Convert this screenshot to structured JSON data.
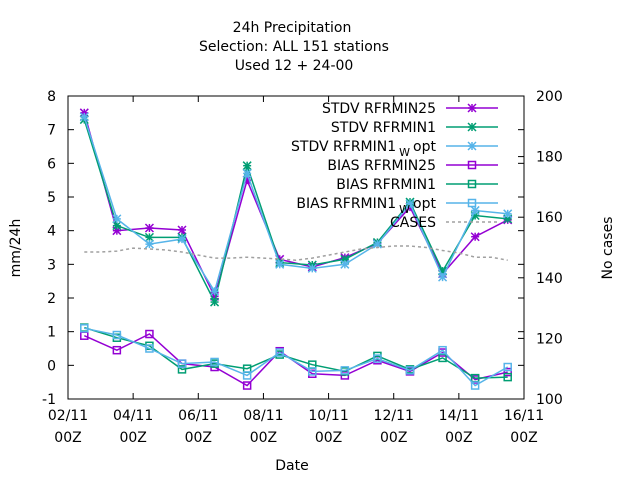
{
  "chart_data": {
    "type": "line",
    "title_lines": [
      "24h Precipitation",
      "Selection: ALL     151 stations",
      "Used  12 + 24-00"
    ],
    "xlabel": "Date",
    "ylabel": "mm/24h",
    "y2label": "No cases",
    "ylim": [
      -1,
      8
    ],
    "y2lim": [
      100,
      200
    ],
    "yticks": [
      "-1",
      "0",
      "1",
      "2",
      "3",
      "4",
      "5",
      "6",
      "7",
      "8"
    ],
    "y2ticks": [
      "100",
      "120",
      "140",
      "160",
      "180",
      "200"
    ],
    "xticks": [
      {
        "top": "02/11",
        "bottom": "00Z"
      },
      {
        "top": "04/11",
        "bottom": "00Z"
      },
      {
        "top": "06/11",
        "bottom": "00Z"
      },
      {
        "top": "08/11",
        "bottom": "00Z"
      },
      {
        "top": "10/11",
        "bottom": "00Z"
      },
      {
        "top": "12/11",
        "bottom": "00Z"
      },
      {
        "top": "14/11",
        "bottom": "00Z"
      },
      {
        "top": "16/11",
        "bottom": "00Z"
      }
    ],
    "x_days": [
      2.5,
      3.5,
      4.5,
      5.5,
      6.5,
      7.5,
      8.5,
      9.5,
      10.5,
      11.5,
      12.5,
      13.5,
      14.5,
      15.5
    ],
    "x_range_days": [
      2,
      16
    ],
    "legend_position": "top-right",
    "series": [
      {
        "name": "STDV RFRMIN25",
        "color": "#9400d3",
        "marker": "star",
        "axis": "y1",
        "values": [
          7.5,
          4.0,
          4.08,
          4.02,
          2.05,
          5.5,
          3.15,
          2.92,
          3.2,
          3.62,
          4.7,
          2.72,
          3.82,
          4.32
        ]
      },
      {
        "name": "STDV RFRMIN1",
        "color": "#009e73",
        "marker": "star",
        "axis": "y1",
        "values": [
          7.3,
          4.15,
          3.8,
          3.8,
          1.88,
          5.93,
          3.05,
          2.98,
          3.15,
          3.65,
          4.85,
          2.8,
          4.45,
          4.35
        ]
      },
      {
        "name": "STDV RFRMIN1",
        "name_sub": "W",
        "name_suffix": "opt",
        "color": "#56b4e9",
        "marker": "star",
        "axis": "y1",
        "values": [
          7.38,
          4.35,
          3.6,
          3.75,
          2.2,
          5.7,
          3.0,
          2.88,
          3.0,
          3.6,
          4.8,
          2.62,
          4.6,
          4.5
        ]
      },
      {
        "name": "BIAS RFRMIN25",
        "color": "#9400d3",
        "marker": "square",
        "axis": "y1",
        "values": [
          0.88,
          0.45,
          0.93,
          0.05,
          -0.05,
          -0.6,
          0.42,
          -0.25,
          -0.3,
          0.15,
          -0.18,
          0.38,
          -0.42,
          -0.2
        ]
      },
      {
        "name": "BIAS RFRMIN1",
        "color": "#009e73",
        "marker": "square",
        "axis": "y1",
        "values": [
          1.12,
          0.82,
          0.58,
          -0.12,
          0.05,
          -0.1,
          0.32,
          0.02,
          -0.18,
          0.28,
          -0.12,
          0.22,
          -0.38,
          -0.35
        ]
      },
      {
        "name": "BIAS RFRMIN1",
        "name_sub": "W",
        "name_suffix": "opt",
        "color": "#56b4e9",
        "marker": "square",
        "axis": "y1",
        "values": [
          1.1,
          0.9,
          0.5,
          0.05,
          0.1,
          -0.3,
          0.38,
          -0.18,
          -0.15,
          0.2,
          -0.15,
          0.45,
          -0.6,
          -0.05
        ]
      },
      {
        "name": "CASES",
        "color": "#a0a0a0",
        "marker": "none",
        "dash": true,
        "axis": "y2",
        "x_days": [
          2.5,
          3.0,
          3.5,
          4.0,
          4.5,
          5.0,
          5.5,
          6.0,
          6.5,
          7.0,
          7.5,
          8.0,
          8.5,
          9.0,
          9.5,
          10.0,
          10.5,
          11.0,
          11.5,
          12.0,
          12.5,
          13.0,
          13.5,
          14.0,
          14.5,
          15.0,
          15.5
        ],
        "values": [
          148.5,
          148.5,
          148.8,
          149.8,
          149.5,
          149.2,
          148.5,
          147.5,
          146.5,
          146.5,
          146.8,
          146.5,
          146.2,
          145.8,
          146.5,
          147.5,
          148.5,
          149.5,
          150.0,
          150.5,
          150.5,
          150.0,
          149.0,
          148.2,
          146.8,
          146.8,
          145.8
        ]
      }
    ]
  }
}
